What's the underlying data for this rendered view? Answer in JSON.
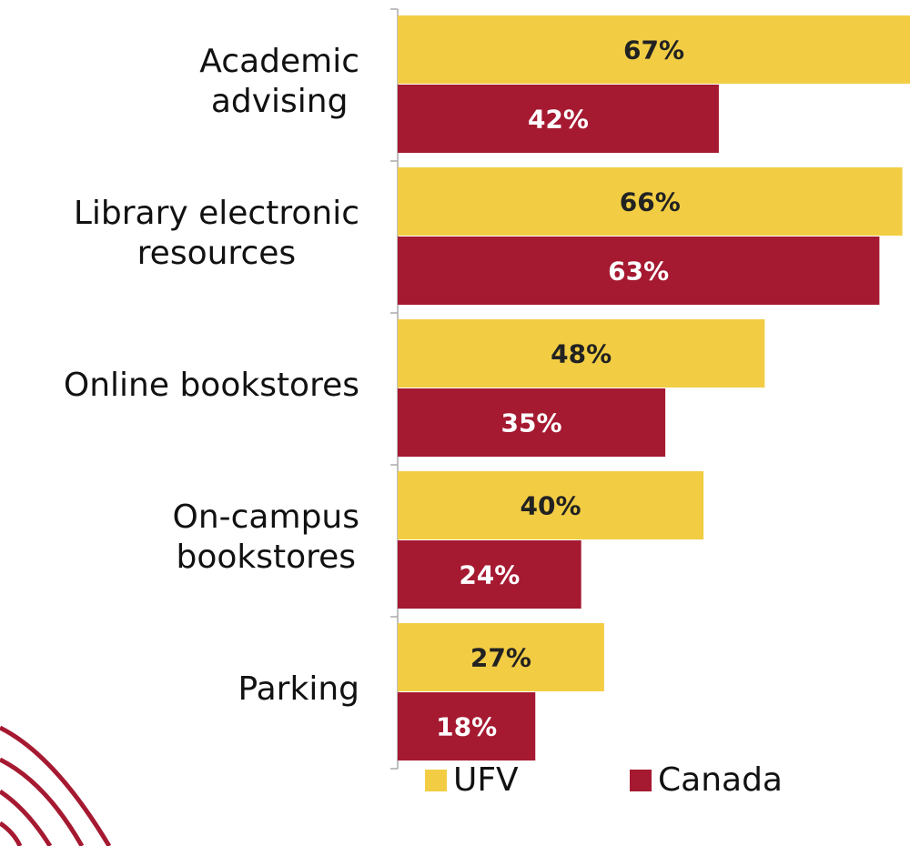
{
  "chart_data": {
    "type": "bar",
    "orientation": "horizontal",
    "categories": [
      "Academic\nadvising",
      "Library electronic\nresources",
      "Online bookstores",
      "On-campus\nbookstores",
      "Parking"
    ],
    "series": [
      {
        "name": "UFV",
        "color": "#f2cd44",
        "label_color": "#222222",
        "values": [
          67,
          66,
          48,
          40,
          27
        ],
        "value_labels": [
          "67%",
          "66%",
          "48%",
          "40%",
          "27%"
        ]
      },
      {
        "name": "Canada",
        "color": "#a51931",
        "label_color": "#ffffff",
        "values": [
          42,
          63,
          35,
          24,
          18
        ],
        "value_labels": [
          "42%",
          "63%",
          "35%",
          "24%",
          "18%"
        ]
      }
    ],
    "xlim": [
      0,
      67
    ],
    "legend": "bottom"
  }
}
